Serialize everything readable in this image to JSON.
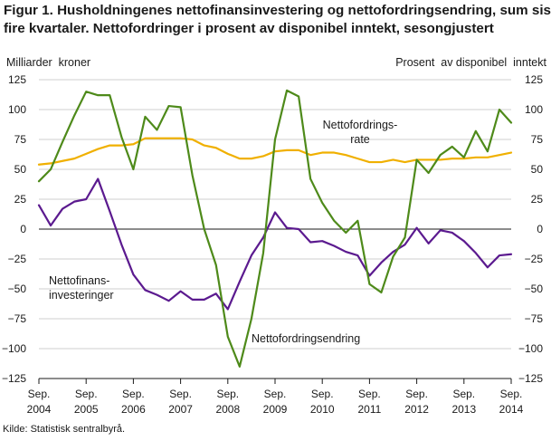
{
  "title_line1": "Figur 1. Husholdningenes nettofinansinvestering og nettofordringsendring, sum siste",
  "title_line2": "fire kvartaler. Nettofordringer i prosent av disponibel inntekt, sesongjustert",
  "source": "Kilde: Statistisk sentralbyrå.",
  "colors": {
    "nettofinansinvestering": "#5b1a8f",
    "nettofordringsendring": "#4e8a1a",
    "nettofordringsrate": "#f0b000",
    "grid": "#cfcfcf"
  },
  "chart_data": {
    "type": "line",
    "ylabel_left": "Milliarder  kroner",
    "ylabel_right": "Prosent  av disponibel  inntekt",
    "ylim": [
      -125,
      125
    ],
    "yticks": [
      125,
      100,
      75,
      50,
      25,
      0,
      -25,
      -50,
      -75,
      -100,
      -125
    ],
    "xlim": [
      0,
      40
    ],
    "xticks": [
      {
        "x": 0,
        "line1": "Sep.",
        "line2": "2004"
      },
      {
        "x": 4,
        "line1": "Sep.",
        "line2": "2005"
      },
      {
        "x": 8,
        "line1": "Sep.",
        "line2": "2006"
      },
      {
        "x": 12,
        "line1": "Sep.",
        "line2": "2007"
      },
      {
        "x": 16,
        "line1": "Sep.",
        "line2": "2008"
      },
      {
        "x": 20,
        "line1": "Sep.",
        "line2": "2009"
      },
      {
        "x": 24,
        "line1": "Sep.",
        "line2": "2010"
      },
      {
        "x": 28,
        "line1": "Sep.",
        "line2": "2011"
      },
      {
        "x": 32,
        "line1": "Sep.",
        "line2": "2012"
      },
      {
        "x": 36,
        "line1": "Sep.",
        "line2": "2013"
      },
      {
        "x": 40,
        "line1": "Sep.",
        "line2": "2014"
      }
    ],
    "grid": true,
    "series": [
      {
        "key": "nettofinansinvestering",
        "label_lines": [
          "Nettofinans-",
          "investeringer"
        ],
        "values": [
          20,
          3,
          17,
          23,
          25,
          42,
          15,
          -13,
          -38,
          -51,
          -55,
          -60,
          -52,
          -59,
          -59,
          -54,
          -67,
          -44,
          -22,
          -7,
          14,
          1,
          0,
          -11,
          -10,
          -14,
          -19,
          -22,
          -39,
          -28,
          -19,
          -13,
          1,
          -12,
          -1,
          -3,
          -10,
          -20,
          -32,
          -22,
          -21
        ]
      },
      {
        "key": "nettofordringsendring",
        "label_lines": [
          "Nettofordringsendring"
        ],
        "values": [
          40,
          50,
          73,
          95,
          115,
          112,
          112,
          77,
          50,
          94,
          83,
          103,
          102,
          45,
          0,
          -30,
          -90,
          -115,
          -75,
          -20,
          75,
          116,
          111,
          42,
          22,
          7,
          -3,
          7,
          -46,
          -53,
          -23,
          -7,
          58,
          47,
          62,
          69,
          60,
          82,
          65,
          100,
          89
        ]
      },
      {
        "key": "nettofordringsrate",
        "label_lines": [
          "Nettofordrings-",
          "rate"
        ],
        "values": [
          54,
          55,
          57,
          59,
          63,
          67,
          70,
          70,
          71,
          76,
          76,
          76,
          76,
          75,
          70,
          68,
          63,
          59,
          59,
          61,
          65,
          66,
          66,
          62,
          64,
          64,
          62,
          59,
          56,
          56,
          58,
          56,
          58,
          58,
          58,
          59,
          59,
          60,
          60,
          62,
          64
        ]
      }
    ]
  }
}
